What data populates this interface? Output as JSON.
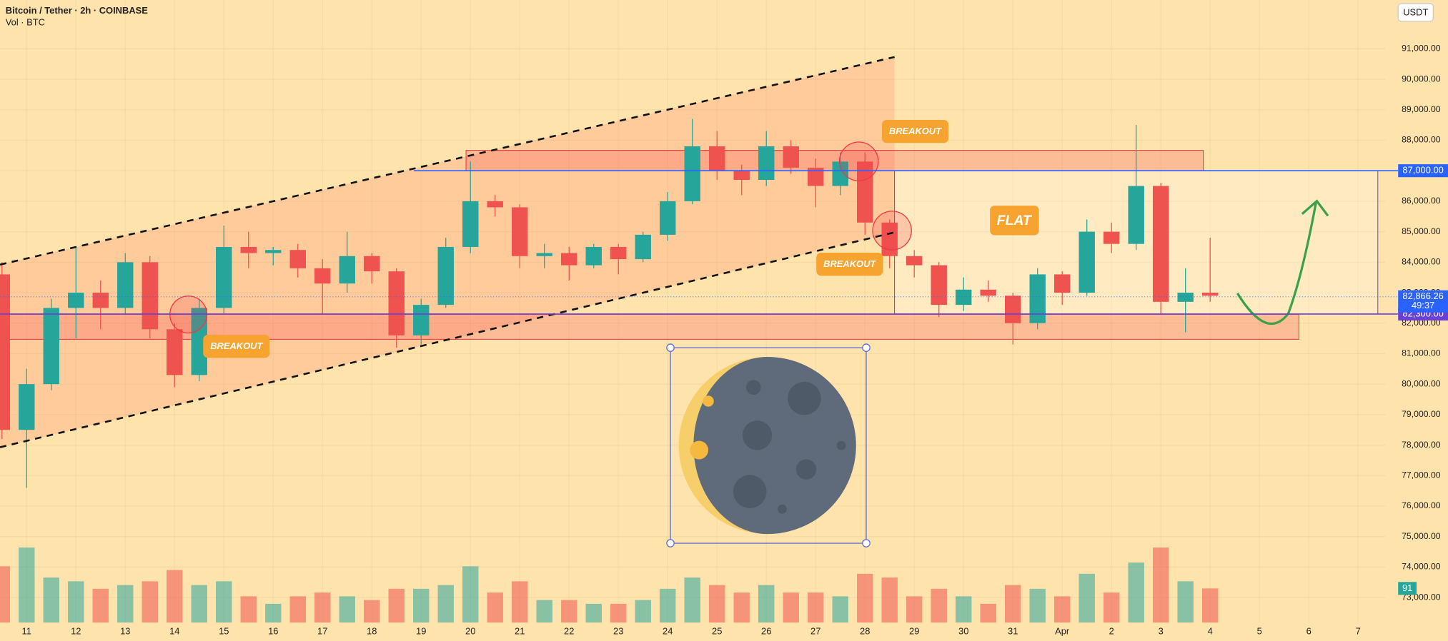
{
  "header": {
    "symbol": "Bitcoin / Tether · 2h · COINBASE",
    "volume_label": "Vol · BTC",
    "currency": "USDT"
  },
  "chart_data": {
    "type": "candlestick",
    "x": [
      10.5,
      11,
      11.5,
      12,
      12.5,
      13,
      13.5,
      14,
      14.5,
      15,
      15.5,
      16,
      16.5,
      17,
      17.5,
      18,
      18.5,
      19,
      19.5,
      20,
      20.5,
      21,
      21.5,
      22,
      22.5,
      23,
      23.5,
      24,
      24.5,
      25,
      25.5,
      26,
      26.5,
      27,
      27.5,
      28,
      28.5,
      29,
      29.5,
      30,
      30.5,
      31,
      31.5,
      32,
      32.5,
      33,
      33.5,
      34,
      34.5,
      35
    ],
    "open": [
      83600,
      78500,
      80000,
      82500,
      83000,
      82500,
      84000,
      81800,
      80300,
      82500,
      84500,
      84300,
      84400,
      83800,
      83300,
      84200,
      83700,
      81600,
      82600,
      84500,
      86000,
      85800,
      84200,
      84300,
      83900,
      84500,
      84100,
      84900,
      86000,
      87800,
      87000,
      86700,
      87800,
      87100,
      86500,
      87300,
      85300,
      84200,
      83900,
      82600,
      83100,
      82900,
      82000,
      83600,
      83000,
      85000,
      84600,
      86500,
      82700,
      83000
    ],
    "high": [
      84000,
      80500,
      82800,
      84500,
      83400,
      84300,
      84200,
      82000,
      82800,
      85200,
      85000,
      84500,
      84600,
      84100,
      85000,
      84300,
      83800,
      82800,
      84800,
      87300,
      86200,
      85900,
      84600,
      84500,
      84600,
      84600,
      85000,
      86300,
      88700,
      88300,
      87200,
      88300,
      88000,
      87400,
      87600,
      87600,
      85400,
      84400,
      84000,
      83500,
      83400,
      83000,
      83800,
      83700,
      85400,
      85300,
      88500,
      86600,
      83800,
      84800
    ],
    "low": [
      78200,
      76600,
      79800,
      81500,
      81800,
      82300,
      81500,
      79900,
      80100,
      82300,
      83800,
      83900,
      83500,
      82300,
      83000,
      83300,
      81200,
      81300,
      82500,
      84300,
      85500,
      83800,
      83800,
      83400,
      83800,
      83600,
      84000,
      84700,
      85900,
      86700,
      86200,
      86500,
      86900,
      85800,
      86200,
      84900,
      83800,
      83500,
      82200,
      82400,
      82700,
      81300,
      81800,
      82600,
      82900,
      84300,
      84400,
      82300,
      81700,
      82700
    ],
    "close": [
      78500,
      80000,
      82500,
      83000,
      82500,
      84000,
      81800,
      80300,
      82500,
      84500,
      84300,
      84400,
      83800,
      83300,
      84200,
      83700,
      81600,
      82600,
      84500,
      86000,
      85800,
      84200,
      84300,
      83900,
      84500,
      84100,
      84900,
      86000,
      87800,
      87000,
      86700,
      87800,
      87100,
      86500,
      87300,
      85300,
      84200,
      83900,
      82600,
      83100,
      82900,
      82000,
      83600,
      83000,
      85000,
      84600,
      86500,
      82700,
      83000,
      82900
    ],
    "volume": [
      150,
      200,
      120,
      110,
      90,
      100,
      110,
      140,
      100,
      110,
      70,
      50,
      70,
      80,
      70,
      60,
      90,
      90,
      100,
      150,
      80,
      110,
      60,
      60,
      50,
      50,
      60,
      90,
      120,
      100,
      80,
      100,
      80,
      80,
      70,
      130,
      120,
      70,
      90,
      70,
      50,
      100,
      90,
      70,
      130,
      80,
      160,
      200,
      110,
      91
    ],
    "volume_ylim": [
      0,
      1660
    ],
    "up_color": "#26a69a",
    "down_color": "#ef5350",
    "xlim": [
      10.46,
      38.55
    ],
    "xticks": [
      11,
      12,
      13,
      14,
      15,
      16,
      17,
      18,
      19,
      20,
      21,
      22,
      23,
      24,
      25,
      26,
      27,
      28,
      29,
      30,
      31,
      {
        "value": 32,
        "label": "Apr"
      },
      {
        "value": 33,
        "label": "2"
      },
      {
        "value": 34,
        "label": "3"
      },
      {
        "value": 35,
        "label": "4"
      },
      {
        "value": 36,
        "label": "5"
      },
      {
        "value": 37,
        "label": "6"
      },
      {
        "value": 38,
        "label": "7"
      }
    ],
    "ylim": [
      72180,
      92600
    ],
    "yticks": [
      {
        "value": 73000,
        "label": "73,000.00"
      },
      {
        "value": 74000,
        "label": "74,000.00"
      },
      {
        "value": 75000,
        "label": "75,000.00"
      },
      {
        "value": 76000,
        "label": "76,000.00"
      },
      {
        "value": 77000,
        "label": "77,000.00"
      },
      {
        "value": 78000,
        "label": "78,000.00"
      },
      {
        "value": 79000,
        "label": "79,000.00"
      },
      {
        "value": 80000,
        "label": "80,000.00"
      },
      {
        "value": 81000,
        "label": "81,000.00"
      },
      {
        "value": 82000,
        "label": "82,000.00"
      },
      {
        "value": 83000,
        "label": "83,000.00"
      },
      {
        "value": 84000,
        "label": "84,000.00"
      },
      {
        "value": 85000,
        "label": "85,000.00"
      },
      {
        "value": 86000,
        "label": "86,000.00"
      },
      {
        "value": 87000,
        "label": "87,000.00"
      },
      {
        "value": 88000,
        "label": "88,000.00"
      },
      {
        "value": 89000,
        "label": "89,000.00"
      },
      {
        "value": 90000,
        "label": "90,000.00"
      },
      {
        "value": 91000,
        "label": "91,000.00"
      }
    ],
    "levels": [
      {
        "value": 87000,
        "label": "87,000.00",
        "from": 18.85,
        "color": "#2962ff"
      },
      {
        "value": 82300,
        "label": "82,300.00",
        "from": 10.46,
        "color": "#6a3fd8"
      }
    ],
    "last_price": {
      "value": 82866.26,
      "label": "82,866.26",
      "countdown": "49:37",
      "color": "#2962ff"
    },
    "zones": [
      {
        "range": [
          87000,
          87670
        ],
        "x": [
          19.91,
          34.86
        ]
      },
      {
        "range": [
          81470,
          82290
        ],
        "x": [
          10.46,
          36.8
        ]
      }
    ],
    "flat_box": {
      "range": [
        82300,
        87000
      ],
      "x": [
        28.6,
        38.4
      ]
    },
    "channel": {
      "upper": [
        [
          10.46,
          83920
        ],
        [
          28.6,
          90730
        ]
      ],
      "lower": [
        [
          10.46,
          77930
        ],
        [
          28.6,
          84980
        ]
      ]
    },
    "annotations": [
      "BREAKOUT",
      "BREAKOUT",
      "BREAKOUT",
      "FLAT"
    ]
  }
}
